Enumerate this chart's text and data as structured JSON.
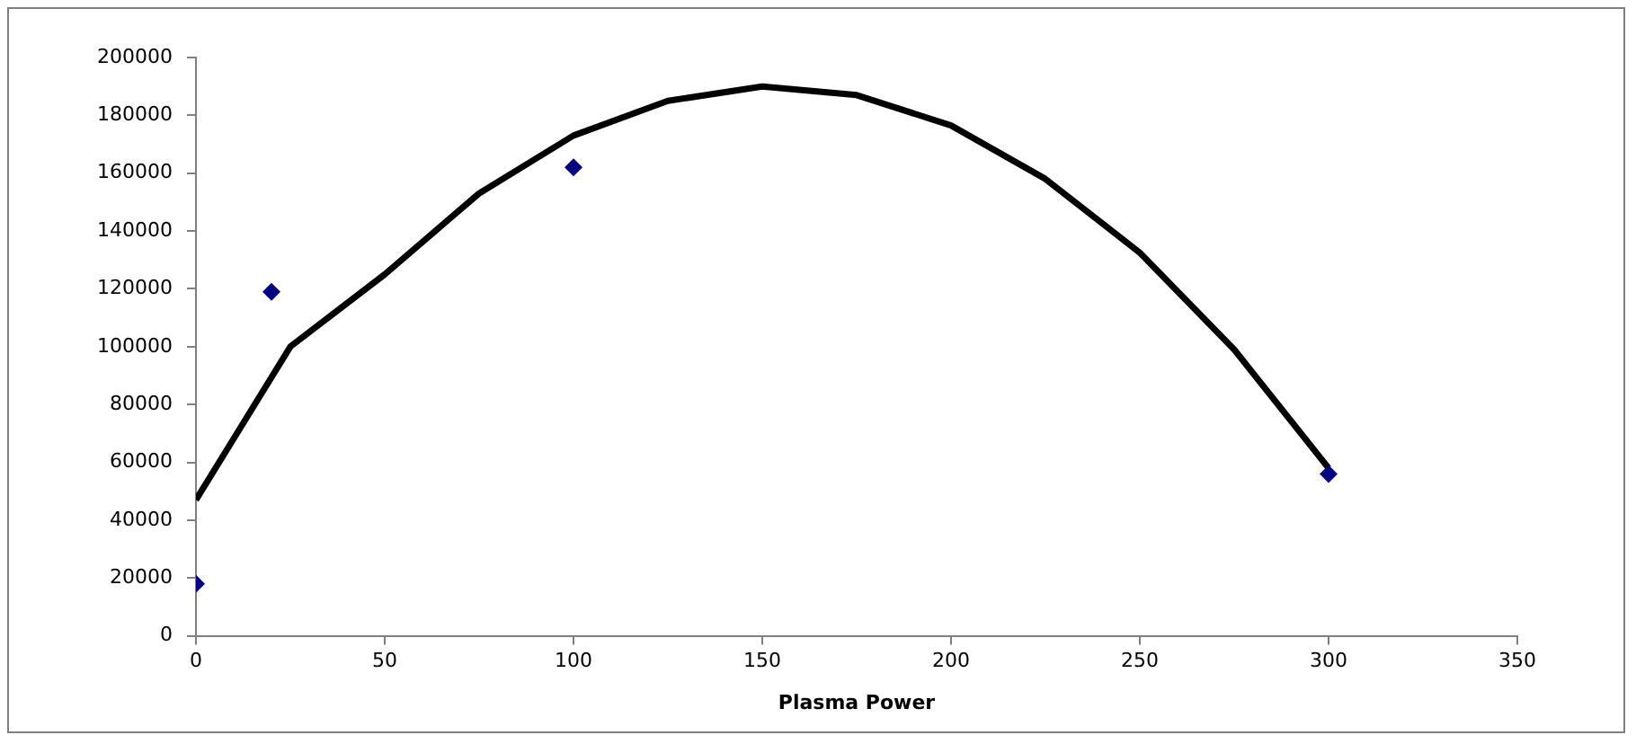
{
  "chart_data": {
    "type": "scatter",
    "xlabel": "Plasma Power",
    "xlim": [
      0,
      350
    ],
    "xticks": [
      0,
      50,
      100,
      150,
      200,
      250,
      300,
      350
    ],
    "ylim": [
      0,
      200000
    ],
    "yticks": [
      0,
      20000,
      40000,
      60000,
      80000,
      100000,
      120000,
      140000,
      160000,
      180000,
      200000
    ],
    "grid": false,
    "legend": false,
    "series": [
      {
        "color": "#000080",
        "marker": "diamond",
        "x": [
          0,
          20,
          100,
          300
        ],
        "values": [
          18000,
          119000,
          162000,
          56000
        ]
      },
      {
        "type": "line",
        "color": "#000000",
        "marker": "none",
        "line_style": "solid",
        "x": [
          0,
          25,
          50,
          75,
          100,
          125,
          150,
          175,
          200,
          225,
          250,
          275,
          300
        ],
        "values": [
          47000,
          100000,
          125000,
          153000,
          173000,
          185000,
          190000,
          187000,
          176500,
          158000,
          132500,
          99000,
          58000
        ]
      }
    ]
  }
}
